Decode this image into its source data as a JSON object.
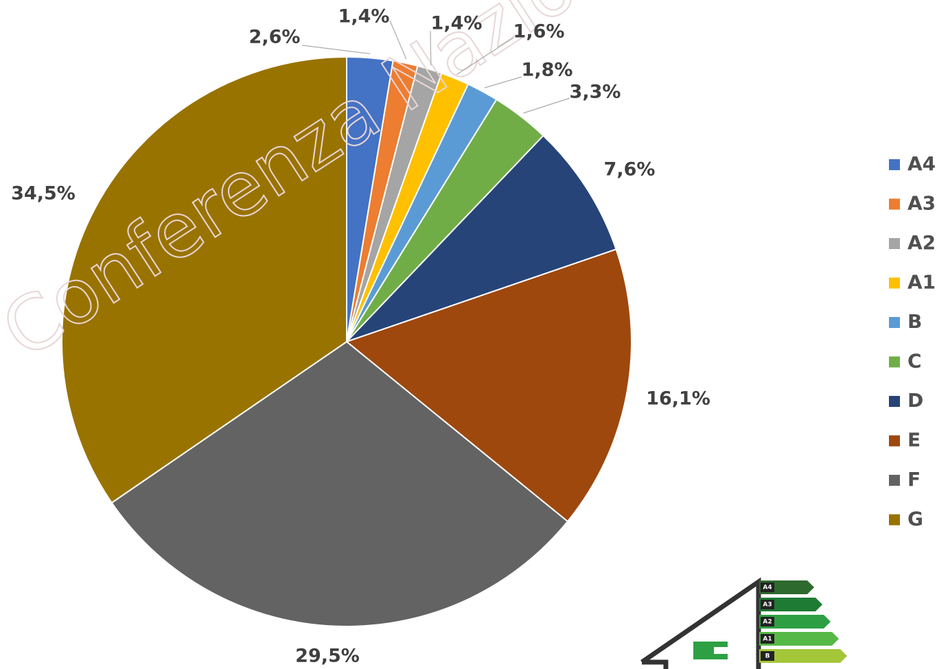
{
  "chart_data": {
    "type": "pie",
    "categories": [
      "A4",
      "A3",
      "A2",
      "A1",
      "B",
      "C",
      "D",
      "E",
      "F",
      "G"
    ],
    "values": [
      2.6,
      1.4,
      1.4,
      1.6,
      1.8,
      3.3,
      7.6,
      16.1,
      29.5,
      34.5
    ],
    "value_labels": [
      "2,6%",
      "1,4%",
      "1,4%",
      "1,6%",
      "1,8%",
      "3,3%",
      "7,6%",
      "16,1%",
      "29,5%",
      "34,5%"
    ],
    "colors": [
      "#4472c4",
      "#ed7d31",
      "#a5a5a5",
      "#ffc000",
      "#5b9bd5",
      "#70ad47",
      "#264478",
      "#9e480e",
      "#636363",
      "#997300"
    ],
    "legend": "right",
    "watermark": "Conferenza Nazionale"
  },
  "energy_icon": {
    "labels": [
      "A4",
      "A3",
      "A2",
      "A1",
      "B"
    ]
  }
}
